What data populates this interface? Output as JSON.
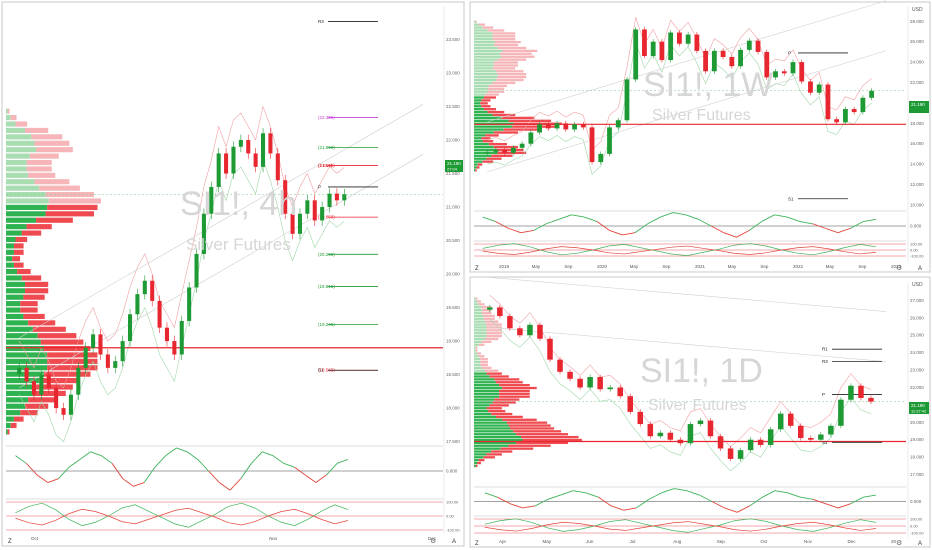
{
  "chart_data": [
    {
      "type": "candlestick",
      "symbol": "SI1!",
      "interval": "4h",
      "watermark_title": "SI1!, 4h",
      "watermark_subtitle": "Silver Futures",
      "currency": "",
      "last_price": "21.190",
      "countdown": "27:04",
      "y_ticks": [
        "23.500",
        "23.000",
        "22.500",
        "22.000",
        "21.500",
        "21.000",
        "20.500",
        "20.000",
        "19.500",
        "19.000",
        "18.500",
        "18.000",
        "17.500"
      ],
      "levels": [
        {
          "label": "R3",
          "value": 23.77
        },
        {
          "label": "(22.335)",
          "value": 22.335
        },
        {
          "label": "(21.890)",
          "value": 21.89
        },
        {
          "label": "(21.618)",
          "value": 21.618
        },
        {
          "label": "(1.618)",
          "value": 21.618
        },
        {
          "label": "P",
          "value": 21.3
        },
        {
          "label": "(20.850)",
          "value": 20.85
        },
        {
          "label": "(20.295)",
          "value": 20.295
        },
        {
          "label": "(19.815)",
          "value": 19.815
        },
        {
          "label": "(19.245)",
          "value": 19.245
        },
        {
          "label": "(18.565)",
          "value": 18.565
        },
        {
          "label": "S1",
          "value": 18.565
        }
      ],
      "x_ticks": [
        "Oct",
        "",
        "",
        "",
        "",
        "",
        "Nov",
        "",
        "",
        "",
        "Dec"
      ],
      "closes": [
        18.6,
        18.4,
        18.2,
        18.5,
        18.3,
        18.0,
        17.9,
        18.2,
        18.6,
        18.9,
        19.1,
        18.8,
        18.6,
        18.7,
        19.0,
        19.4,
        19.7,
        19.9,
        19.6,
        19.2,
        19.0,
        18.8,
        19.3,
        19.8,
        20.3,
        20.9,
        21.3,
        21.8,
        21.5,
        21.9,
        22.0,
        21.8,
        21.6,
        22.1,
        21.8,
        21.4,
        20.9,
        20.6,
        20.9,
        21.1,
        20.8,
        21.0,
        21.2,
        21.1,
        21.19
      ]
    },
    {
      "type": "candlestick",
      "symbol": "SI1!",
      "interval": "1W",
      "watermark_title": "SI1!, 1W",
      "watermark_subtitle": "Silver Futures",
      "currency": "USD",
      "last_price": "21.190",
      "countdown": "",
      "y_ticks": [
        "28.000",
        "26.000",
        "24.000",
        "22.000",
        "20.000",
        "18.000",
        "16.000",
        "14.000",
        "12.000",
        "10.000"
      ],
      "levels": [
        {
          "label": "P",
          "value": 24.9
        },
        {
          "label": "S1",
          "value": 10.6
        }
      ],
      "x_ticks": [
        "2019",
        "May",
        "Sep",
        "2020",
        "May",
        "Sep",
        "2021",
        "May",
        "Sep",
        "2022",
        "May",
        "Sep",
        "2023"
      ],
      "closes": [
        15.2,
        15.4,
        15.1,
        15.6,
        16.0,
        17.1,
        17.9,
        17.5,
        18.0,
        17.4,
        17.9,
        17.6,
        14.2,
        15.0,
        17.6,
        18.3,
        22.3,
        27.2,
        24.6,
        26.0,
        24.2,
        26.9,
        25.8,
        26.7,
        25.1,
        23.1,
        25.1,
        24.5,
        23.6,
        25.2,
        26.1,
        25.0,
        22.5,
        23.1,
        22.9,
        24.0,
        22.1,
        21.0,
        21.8,
        18.4,
        18.1,
        19.4,
        19.1,
        20.5,
        21.19
      ]
    },
    {
      "type": "candlestick",
      "symbol": "SI1!",
      "interval": "1D",
      "watermark_title": "SI1!, 1D",
      "watermark_subtitle": "Silver Futures",
      "currency": "USD",
      "last_price": "21.190",
      "countdown": "11:27:42",
      "y_ticks": [
        "27.000",
        "26.000",
        "25.000",
        "24.000",
        "23.000",
        "22.000",
        "21.000",
        "20.000",
        "19.000",
        "18.000",
        "17.000"
      ],
      "levels": [
        {
          "label": "R1",
          "value": 24.2
        },
        {
          "label": "R3",
          "value": 23.5
        },
        {
          "label": "P",
          "value": 21.6
        },
        {
          "label": "S1",
          "value": 18.85
        }
      ],
      "x_ticks": [
        "Apr",
        "May",
        "Jun",
        "Jul",
        "Aug",
        "Sep",
        "Oct",
        "Nov",
        "Dec",
        "20"
      ],
      "closes": [
        26.6,
        26.1,
        25.4,
        25.0,
        25.6,
        24.8,
        23.6,
        22.9,
        22.5,
        22.0,
        22.6,
        21.9,
        22.0,
        21.5,
        20.6,
        19.9,
        19.2,
        19.4,
        19.0,
        18.8,
        19.9,
        20.1,
        19.2,
        18.5,
        17.9,
        18.4,
        19.0,
        18.7,
        19.6,
        20.5,
        19.8,
        19.1,
        19.0,
        19.3,
        19.8,
        21.3,
        22.1,
        21.4,
        21.19
      ]
    },
    {
      "type": "line",
      "name_text": "",
      "y_ticks_right": [
        "0.000"
      ],
      "series_values": [
        0.4,
        0.2,
        -0.1,
        -0.3,
        -0.2,
        0.1,
        0.3,
        0.5,
        0.4,
        0.2,
        -0.2,
        -0.4,
        -0.3,
        0.1,
        0.4,
        0.6,
        0.5,
        0.3,
        0.0,
        -0.3,
        -0.5,
        -0.2,
        0.2,
        0.5,
        0.4,
        0.2,
        0.1,
        -0.1,
        -0.3,
        -0.1,
        0.2,
        0.3
      ]
    },
    {
      "type": "line",
      "name_text": "",
      "y_ticks_right": [
        "100.00",
        "0.00",
        "-100.00"
      ],
      "series_values": [
        20,
        60,
        80,
        40,
        -20,
        -60,
        -40,
        0,
        50,
        70,
        30,
        -10,
        -50,
        -70,
        -30,
        10,
        60,
        80,
        50,
        0,
        -40,
        -60,
        -20,
        30,
        70,
        40
      ]
    }
  ],
  "labels": {
    "tv_badge": "Z",
    "gear_glyph": "⚙",
    "auto_scale": "A"
  },
  "colors": {
    "up": "#1e9a34",
    "down": "#e8262f",
    "resistance": "#e8262f",
    "pivot_line": "#222222",
    "price_tag": "#1e9a34",
    "vp_up": "#2fb350",
    "vp_down": "#ef4a50",
    "vp_up_light": "#a8ddb2",
    "vp_down_light": "#f6b5b8",
    "magenta": "#c542d6",
    "orange": "#f0a040",
    "osc_green": "#3db35a",
    "osc_red": "#e2453a"
  }
}
